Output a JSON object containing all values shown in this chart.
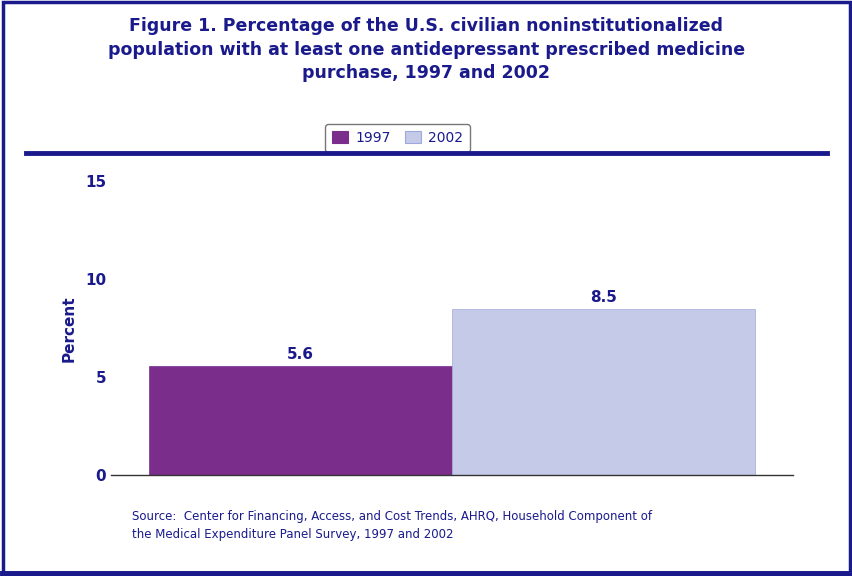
{
  "title_line1": "Figure 1. Percentage of the U.S. civilian noninstitutionalized",
  "title_line2": "population with at least one antidepressant prescribed medicine",
  "title_line3": "purchase, 1997 and 2002",
  "categories": [
    "1997",
    "2002"
  ],
  "values": [
    5.6,
    8.5
  ],
  "bar_colors": [
    "#7b2d8b",
    "#c5cae9"
  ],
  "bar_edge_colors": [
    "#7b2d8b",
    "#9fa8da"
  ],
  "ylabel": "Percent",
  "ylim": [
    0,
    15
  ],
  "yticks": [
    0,
    5,
    10,
    15
  ],
  "title_color": "#1a1a8c",
  "title_fontsize": 12.5,
  "axis_label_color": "#1a1a8c",
  "tick_label_color": "#1a1a8c",
  "value_label_color": "#1a1a8c",
  "value_label_fontsize": 11,
  "legend_labels": [
    "1997",
    "2002"
  ],
  "legend_colors": [
    "#7b2d8b",
    "#c5cae9"
  ],
  "legend_edge_colors": [
    "#7b2d8b",
    "#9fa8da"
  ],
  "source_text_line1": "Source:  Center for Financing, Access, and Cost Trends, AHRQ, Household Component of",
  "source_text_line2": "the Medical Expenditure Panel Survey, 1997 and 2002",
  "bg_color": "#ffffff",
  "header_line_color": "#1a1a8c",
  "border_color": "#1a1a8c"
}
